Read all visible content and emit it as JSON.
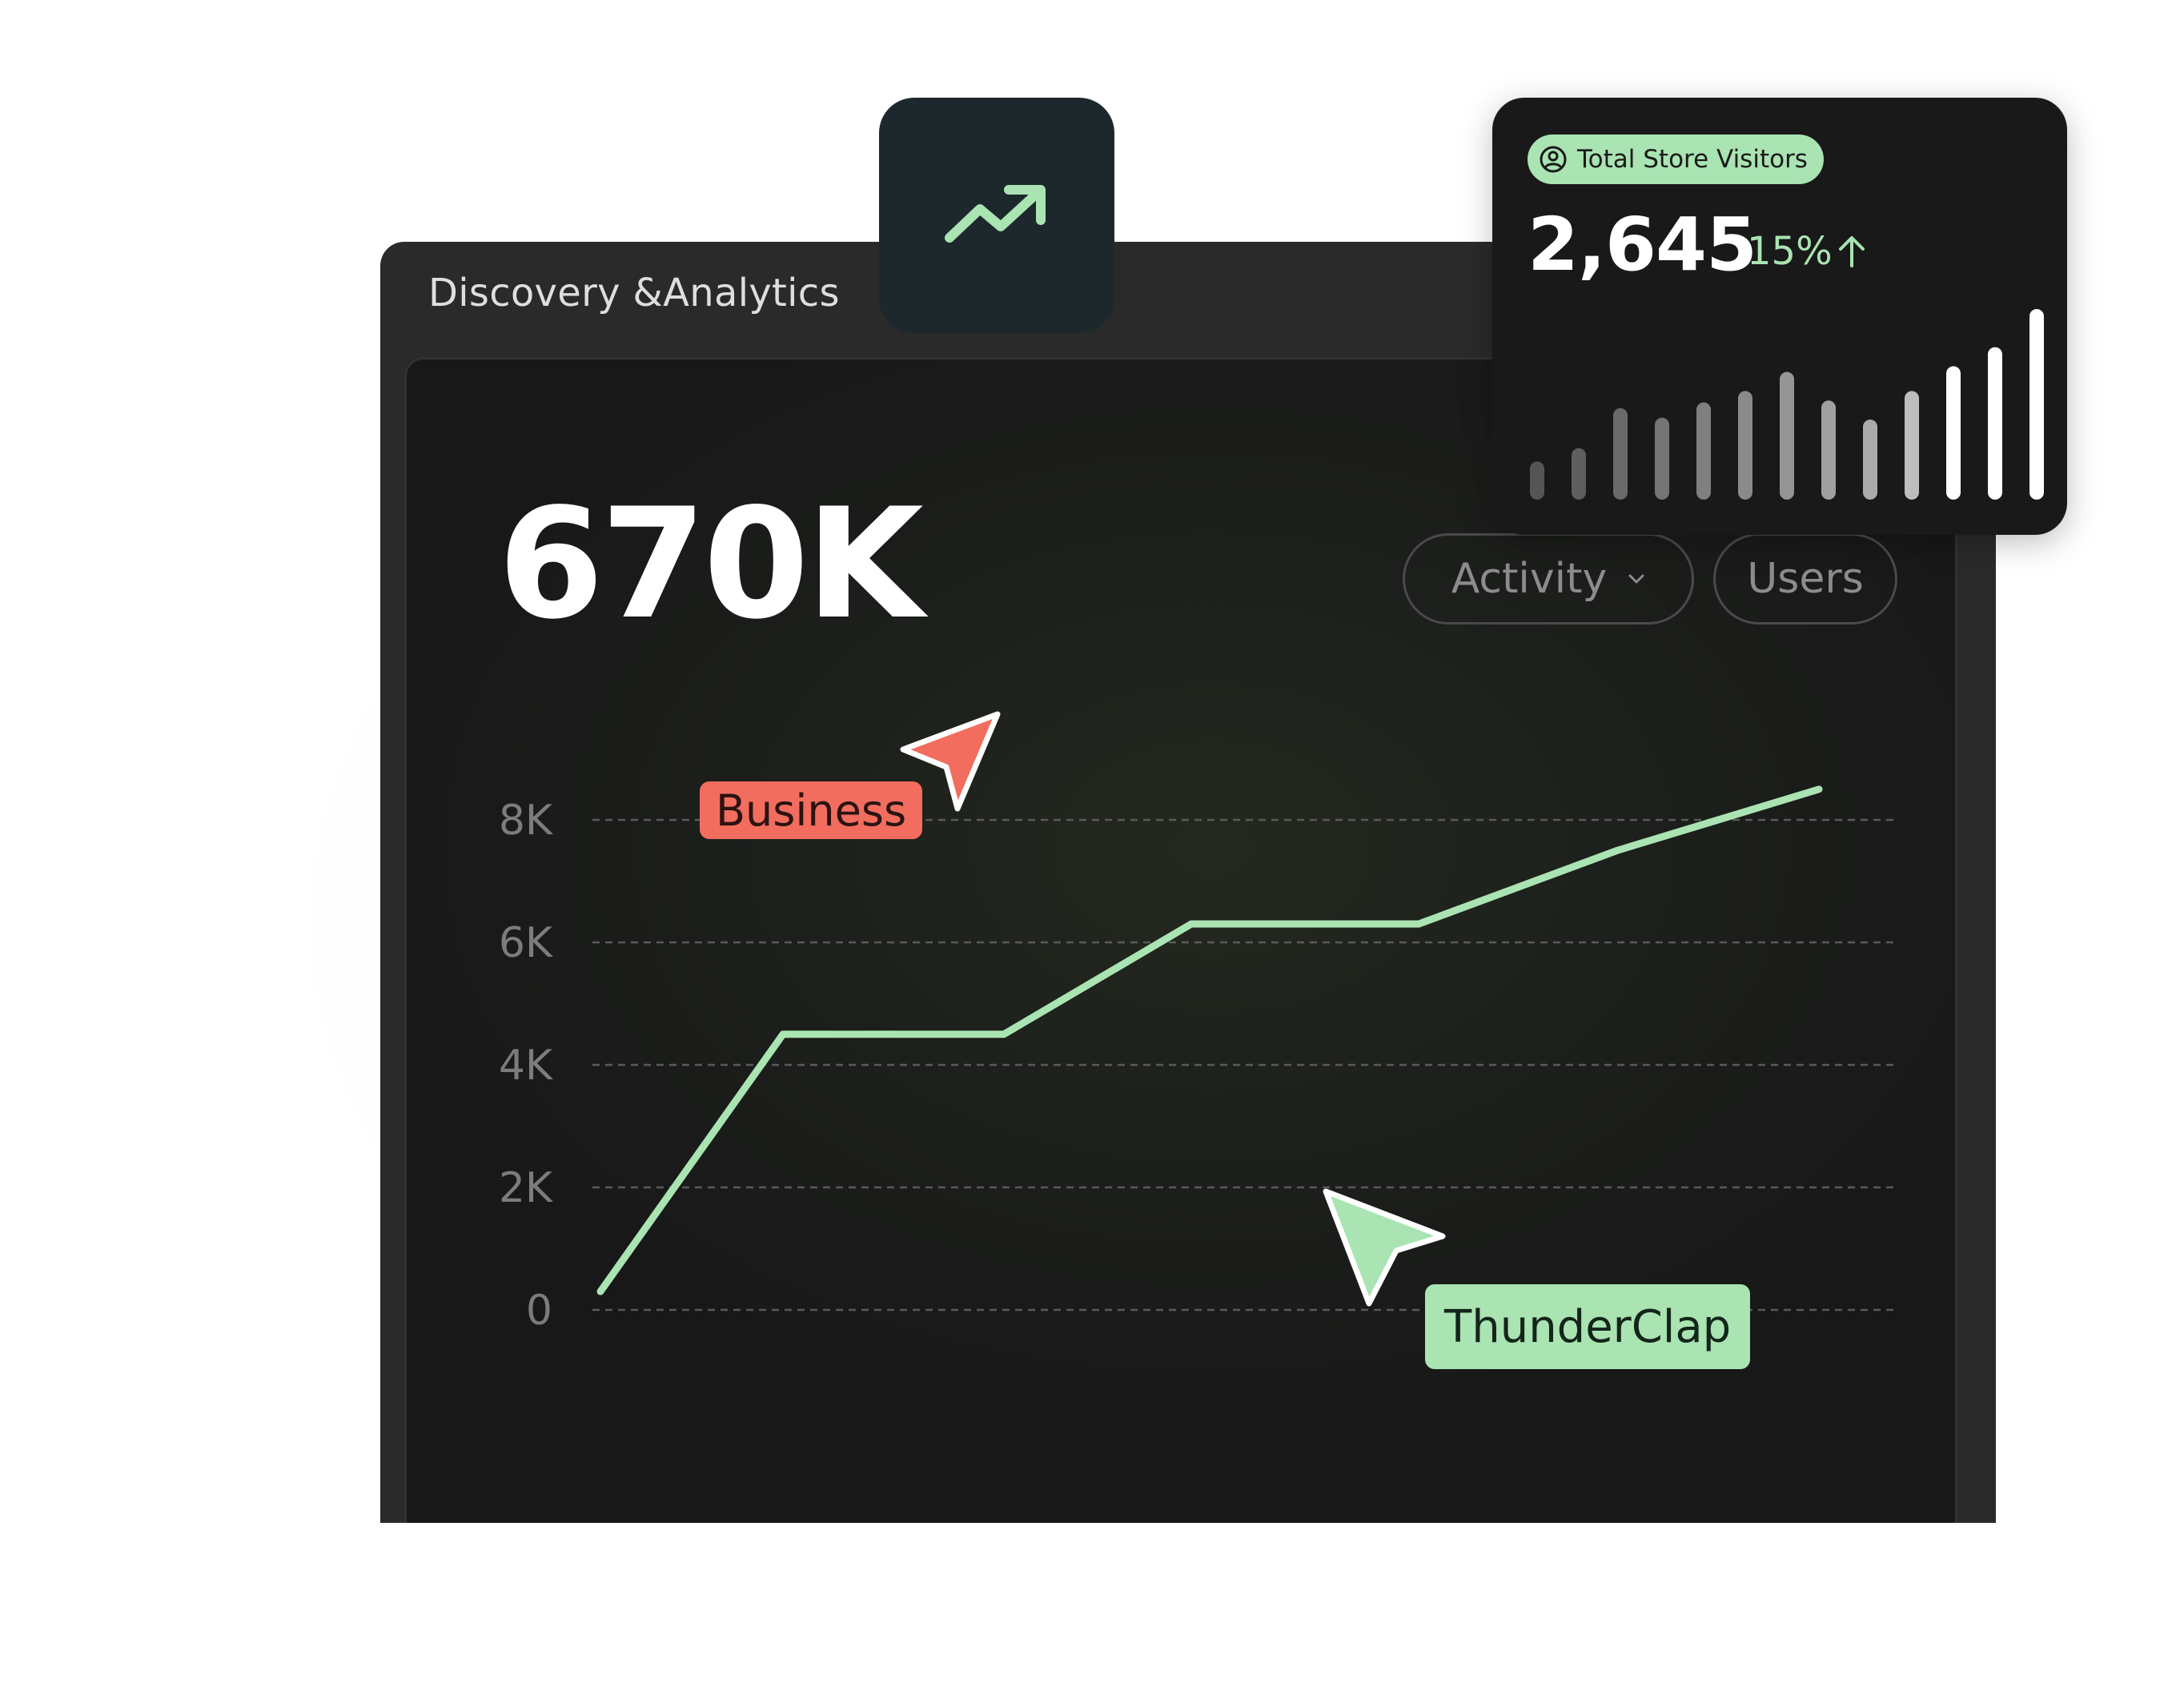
{
  "window": {
    "title": "Discovery &Analytics"
  },
  "main_metric": {
    "value": "670K"
  },
  "filters": {
    "activity_label": "Activity",
    "users_label": "Users"
  },
  "icons": {
    "trend": "trending-up-icon",
    "badge": "user-circle-icon",
    "dropdown": "chevron-down-icon",
    "change": "arrow-up-icon"
  },
  "colors": {
    "accent_green": "#a9e4b2",
    "accent_red": "#f26d5e",
    "panel_bg": "#181818",
    "window_bg": "#2a2a2a"
  },
  "visitors_card": {
    "badge_label": "Total Store Visitors",
    "value": "2,645",
    "change": "15%"
  },
  "tags": {
    "business": "Business",
    "thunderclap": "ThunderClap"
  },
  "chart_data": {
    "type": "line",
    "x": [
      0,
      1,
      2,
      3,
      4,
      5,
      6
    ],
    "values": [
      300,
      4500,
      4500,
      6300,
      6300,
      7500,
      8500
    ],
    "ylim": [
      0,
      8000
    ],
    "yticks": [
      "0",
      "2K",
      "4K",
      "6K",
      "8K"
    ],
    "grid": "dashed-horizontal",
    "line_color": "#a9e4b2"
  },
  "visitors_bars": {
    "values": [
      0.2,
      0.27,
      0.48,
      0.43,
      0.51,
      0.57,
      0.67,
      0.52,
      0.42,
      0.57,
      0.7,
      0.8,
      1.0
    ],
    "colors": [
      "#555555",
      "#5e5e5e",
      "#6a6a6a",
      "#747474",
      "#7f7f7f",
      "#8a8a8a",
      "#959595",
      "#a0a0a0",
      "#ababab",
      "#bdbdbd",
      "#ffffff",
      "#ffffff",
      "#ffffff"
    ]
  }
}
